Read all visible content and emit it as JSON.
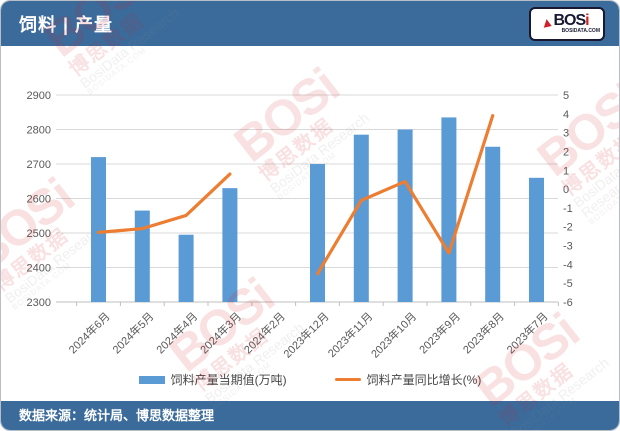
{
  "header": {
    "title": "饲料 | 产量"
  },
  "logo": {
    "text_main": "BOS",
    "text_i": "i",
    "site": "BOSIDATA.COM"
  },
  "footer": {
    "text": "数据来源：统计局、博思数据整理"
  },
  "watermark": {
    "big": "BOSi",
    "cn": "博思数据",
    "en": "BosiData Research",
    "site": "BOSIDATA.COM"
  },
  "theme": {
    "header_blue": "#3a6b9b",
    "watermark_red": "#d21f26"
  },
  "chart_data": {
    "type": "bar",
    "subtype": "bar-line-combo",
    "categories": [
      "2024年6月",
      "2024年5月",
      "2024年4月",
      "2024年3月",
      "2024年2月",
      "2023年12月",
      "2023年11月",
      "2023年10月",
      "2023年9月",
      "2023年8月",
      "2023年7月"
    ],
    "series": [
      {
        "name": "饲料产量当期值(万吨)",
        "type": "bar",
        "axis": "left",
        "color": "#5b9bd5",
        "values": [
          2720,
          2565,
          2495,
          2630,
          null,
          2700,
          2785,
          2800,
          2835,
          2750,
          2660
        ]
      },
      {
        "name": "饲料产量同比增长(%)",
        "type": "line",
        "axis": "right",
        "color": "#ed7d31",
        "values": [
          -2.3,
          -2.1,
          -1.4,
          0.8,
          null,
          -4.5,
          -0.6,
          0.4,
          -3.4,
          3.9,
          null
        ]
      }
    ],
    "left_axis": {
      "min": 2300,
      "max": 2900,
      "step": 100,
      "ticks": [
        2300,
        2400,
        2500,
        2600,
        2700,
        2800,
        2900
      ]
    },
    "right_axis": {
      "min": -6,
      "max": 5,
      "step": 1,
      "ticks": [
        5,
        4,
        3,
        2,
        1,
        0,
        -1,
        -2,
        -3,
        -4,
        -5,
        -6
      ]
    },
    "grid": true,
    "legend_position": "bottom",
    "x_label_rotation": -45
  }
}
